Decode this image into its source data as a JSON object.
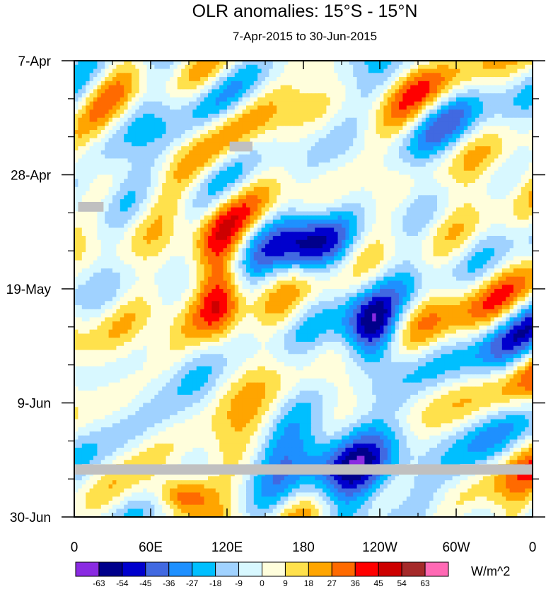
{
  "chart_data": {
    "type": "heatmap",
    "title": "OLR anomalies: 15°S - 15°N",
    "subtitle": "7-Apr-2015 to 30-Jun-2015",
    "xlabel": "",
    "ylabel": "",
    "x_ticks": [
      {
        "lon": 0,
        "label": "0"
      },
      {
        "lon": 60,
        "label": "60E"
      },
      {
        "lon": 120,
        "label": "120E"
      },
      {
        "lon": 180,
        "label": "180"
      },
      {
        "lon": 240,
        "label": "120W"
      },
      {
        "lon": 300,
        "label": "60W"
      },
      {
        "lon": 360,
        "label": "0"
      }
    ],
    "xlim": [
      0,
      360
    ],
    "y_ticks": [
      {
        "day": 0,
        "label": "7-Apr"
      },
      {
        "day": 21,
        "label": "28-Apr"
      },
      {
        "day": 42,
        "label": "19-May"
      },
      {
        "day": 63,
        "label": "9-Jun"
      },
      {
        "day": 84,
        "label": "30-Jun"
      }
    ],
    "ylim": [
      0,
      84
    ],
    "colorbar": {
      "unit": "W/m^2",
      "levels": [
        -63,
        -54,
        -45,
        -36,
        -27,
        -18,
        -9,
        0,
        9,
        18,
        27,
        36,
        45,
        54,
        63
      ],
      "colors": [
        "#8a2be2",
        "#00008b",
        "#0000cd",
        "#4169e1",
        "#1e90ff",
        "#00bfff",
        "#a0d2ff",
        "#d8f8ff",
        "#fffedc",
        "#ffe14c",
        "#ffa500",
        "#ff6a00",
        "#ff0000",
        "#cd0000",
        "#a52a2a",
        "#ff69b4"
      ]
    },
    "missing_data_color": "#c0c0c0",
    "missing_data": [
      {
        "lon": [
          0,
          360
        ],
        "day": [
          74.3,
          76.2
        ]
      },
      {
        "lon": [
          122,
          140
        ],
        "day": [
          14.9,
          16.7
        ]
      },
      {
        "lon": [
          3,
          23
        ],
        "day": [
          26.0,
          27.8
        ]
      }
    ],
    "features": [
      {
        "type": "positive_anomaly",
        "lon": [
          95,
          135
        ],
        "day": [
          28,
          58
        ],
        "peak": 40
      },
      {
        "type": "positive_anomaly",
        "lon": [
          60,
          110
        ],
        "day": [
          76,
          84
        ],
        "peak": 45
      },
      {
        "type": "negative_anomaly",
        "lon": [
          150,
          220
        ],
        "day": [
          28,
          40
        ],
        "peak": -45
      },
      {
        "type": "negative_anomaly",
        "lon": [
          160,
          260
        ],
        "day": [
          65,
          84
        ],
        "peak": -50
      },
      {
        "type": "negative_anomaly",
        "lon": [
          210,
          260
        ],
        "day": [
          42,
          58
        ],
        "peak": -55
      }
    ]
  }
}
